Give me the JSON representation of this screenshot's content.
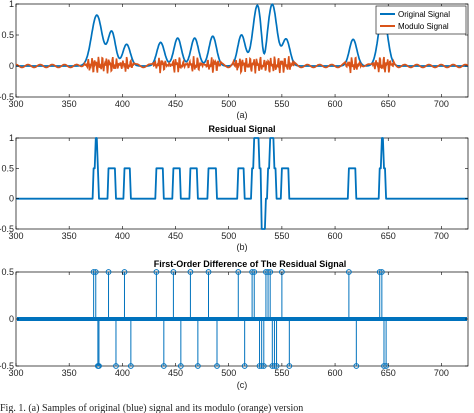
{
  "colors": {
    "blue": "#0072BD",
    "orange": "#D95319",
    "axis": "#000000"
  },
  "caption": "Fig. 1. (a) Samples of original (blue) signal and its modulo (orange) version",
  "chart_data": [
    {
      "type": "line",
      "title": "",
      "subcaption": "(a)",
      "xlim": [
        300,
        725
      ],
      "ylim": [
        -0.5,
        1
      ],
      "xticks": [
        "300",
        "350",
        "400",
        "450",
        "500",
        "550",
        "600",
        "650",
        "700"
      ],
      "yticks": [
        "-0.5",
        "0",
        "0.5",
        "1"
      ],
      "legend_position": "top-right",
      "series": [
        {
          "name": "Original Signal",
          "color": "#0072BD",
          "bursts": [
            {
              "center": 376,
              "amp": 0.82,
              "width": 7
            },
            {
              "center": 390,
              "amp": 0.55,
              "width": 5
            },
            {
              "center": 404,
              "amp": 0.35,
              "width": 5
            },
            {
              "center": 436,
              "amp": 0.38,
              "width": 5
            },
            {
              "center": 452,
              "amp": 0.45,
              "width": 5
            },
            {
              "center": 468,
              "amp": 0.45,
              "width": 5
            },
            {
              "center": 485,
              "amp": 0.48,
              "width": 5
            },
            {
              "center": 512,
              "amp": 0.5,
              "width": 5
            },
            {
              "center": 527,
              "amp": 0.98,
              "width": 6
            },
            {
              "center": 541,
              "amp": 0.99,
              "width": 6
            },
            {
              "center": 554,
              "amp": 0.43,
              "width": 5
            },
            {
              "center": 617,
              "amp": 0.43,
              "width": 5
            },
            {
              "center": 645,
              "amp": 0.85,
              "width": 6
            }
          ],
          "dips": [
            {
              "center": 533,
              "amp": -0.32,
              "width": 3
            }
          ]
        },
        {
          "name": "Modulo Signal",
          "color": "#D95319"
        }
      ]
    },
    {
      "type": "line",
      "title": "Residual Signal",
      "subcaption": "(b)",
      "xlim": [
        300,
        725
      ],
      "ylim": [
        -0.5,
        1
      ],
      "xticks": [
        "300",
        "350",
        "400",
        "450",
        "500",
        "550",
        "600",
        "650",
        "700"
      ],
      "yticks": [
        "-0.5",
        "0",
        "0.5",
        "1"
      ],
      "series": [
        {
          "name": "",
          "color": "#0072BD",
          "pulses": [
            {
              "start": 373,
              "end": 378,
              "value": 0.5
            },
            {
              "start": 375,
              "end": 377,
              "value": 1.0
            },
            {
              "start": 387,
              "end": 394,
              "value": 0.5
            },
            {
              "start": 402,
              "end": 408,
              "value": 0.5
            },
            {
              "start": 432,
              "end": 439,
              "value": 0.5
            },
            {
              "start": 448,
              "end": 455,
              "value": 0.5
            },
            {
              "start": 464,
              "end": 471,
              "value": 0.5
            },
            {
              "start": 481,
              "end": 489,
              "value": 0.5
            },
            {
              "start": 509,
              "end": 515,
              "value": 0.5
            },
            {
              "start": 522,
              "end": 531,
              "value": 0.5
            },
            {
              "start": 524,
              "end": 529,
              "value": 1.0
            },
            {
              "start": 531,
              "end": 535,
              "value": -0.5
            },
            {
              "start": 537,
              "end": 545,
              "value": 0.5
            },
            {
              "start": 539,
              "end": 543,
              "value": 1.0
            },
            {
              "start": 550,
              "end": 557,
              "value": 0.5
            },
            {
              "start": 613,
              "end": 620,
              "value": 0.5
            },
            {
              "start": 642,
              "end": 648,
              "value": 0.5
            },
            {
              "start": 644,
              "end": 646,
              "value": 1.0
            }
          ]
        }
      ]
    },
    {
      "type": "scatter",
      "title": "First-Order Difference of The Residual Signal",
      "subcaption": "(c)",
      "xlim": [
        300,
        725
      ],
      "ylim": [
        -0.5,
        0.5
      ],
      "xticks": [
        "300",
        "350",
        "400",
        "450",
        "500",
        "550",
        "600",
        "650",
        "700"
      ],
      "yticks": [
        "-0.5",
        "0",
        "0.5"
      ],
      "stems": [
        {
          "x": 373,
          "y": 0.5
        },
        {
          "x": 375,
          "y": 0.5
        },
        {
          "x": 377,
          "y": -0.5
        },
        {
          "x": 378,
          "y": -0.5
        },
        {
          "x": 387,
          "y": 0.5
        },
        {
          "x": 394,
          "y": -0.5
        },
        {
          "x": 402,
          "y": 0.5
        },
        {
          "x": 408,
          "y": -0.5
        },
        {
          "x": 432,
          "y": 0.5
        },
        {
          "x": 439,
          "y": -0.5
        },
        {
          "x": 448,
          "y": 0.5
        },
        {
          "x": 455,
          "y": -0.5
        },
        {
          "x": 464,
          "y": 0.5
        },
        {
          "x": 471,
          "y": -0.5
        },
        {
          "x": 481,
          "y": 0.5
        },
        {
          "x": 489,
          "y": -0.5
        },
        {
          "x": 509,
          "y": 0.5
        },
        {
          "x": 515,
          "y": -0.5
        },
        {
          "x": 522,
          "y": 0.5
        },
        {
          "x": 524,
          "y": 0.5
        },
        {
          "x": 529,
          "y": -0.5
        },
        {
          "x": 531,
          "y": -0.5
        },
        {
          "x": 533,
          "y": -0.5
        },
        {
          "x": 535,
          "y": 0.5
        },
        {
          "x": 537,
          "y": 0.5
        },
        {
          "x": 539,
          "y": 0.5
        },
        {
          "x": 541,
          "y": -0.5
        },
        {
          "x": 543,
          "y": -0.5
        },
        {
          "x": 545,
          "y": -0.5
        },
        {
          "x": 550,
          "y": 0.5
        },
        {
          "x": 557,
          "y": -0.5
        },
        {
          "x": 613,
          "y": 0.5
        },
        {
          "x": 620,
          "y": -0.5
        },
        {
          "x": 642,
          "y": 0.5
        },
        {
          "x": 644,
          "y": 0.5
        },
        {
          "x": 646,
          "y": -0.5
        },
        {
          "x": 648,
          "y": -0.5
        }
      ]
    }
  ]
}
